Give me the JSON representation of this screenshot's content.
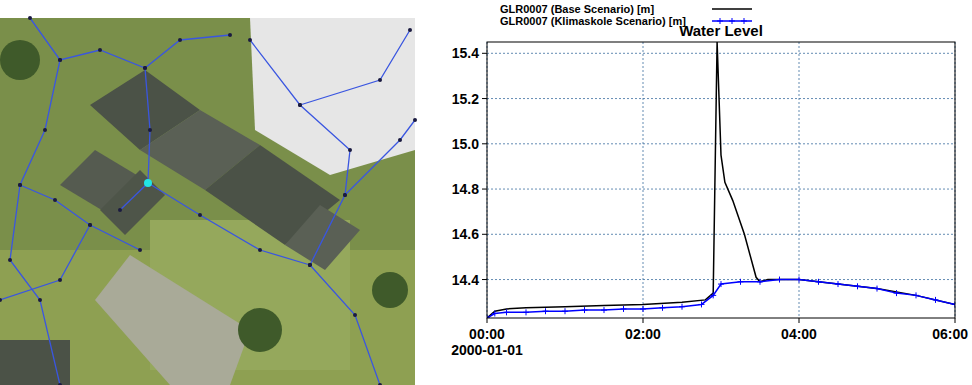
{
  "chart_data": {
    "type": "line",
    "title": "Water Level",
    "xlabel": "2000-01-01",
    "xlim": [
      0,
      6
    ],
    "xticks": [
      {
        "value": 0,
        "label": "00:00"
      },
      {
        "value": 2,
        "label": "02:00"
      },
      {
        "value": 4,
        "label": "04:00"
      },
      {
        "value": 6,
        "label": "06:00"
      }
    ],
    "ylim": [
      14.23,
      15.45
    ],
    "yticks": [
      14.4,
      14.6,
      14.8,
      {
        "value": 15,
        "label": "15.0"
      },
      15.2,
      15.4
    ],
    "grid": true,
    "legend": "top",
    "series": [
      {
        "name": "GLR0007 (Base Scenario) [m]",
        "color": "#000000",
        "line_style": "solid",
        "x": [
          0,
          0.1,
          0.25,
          0.5,
          1,
          1.5,
          2,
          2.5,
          2.8,
          2.9,
          2.95,
          3.0,
          3.05,
          3.15,
          3.3,
          3.45,
          3.5,
          3.6,
          3.75,
          4,
          4.5,
          5,
          5.5,
          6
        ],
        "values": [
          14.23,
          14.26,
          14.27,
          14.275,
          14.28,
          14.285,
          14.29,
          14.3,
          14.31,
          14.34,
          15.45,
          14.95,
          14.83,
          14.75,
          14.6,
          14.41,
          14.39,
          14.4,
          14.4,
          14.4,
          14.38,
          14.36,
          14.33,
          14.29
        ]
      },
      {
        "name": "GLR0007 (Klimaskole Scenario) [m]",
        "color": "#0000ff",
        "line_style": "solid",
        "marker": "plus",
        "x": [
          0,
          0.1,
          0.25,
          0.5,
          0.75,
          1,
          1.25,
          1.5,
          1.75,
          2,
          2.25,
          2.5,
          2.75,
          2.9,
          3.0,
          3.25,
          3.5,
          3.75,
          4,
          4.25,
          4.5,
          4.75,
          5,
          5.25,
          5.5,
          5.75,
          6
        ],
        "values": [
          14.23,
          14.25,
          14.255,
          14.255,
          14.26,
          14.26,
          14.265,
          14.265,
          14.27,
          14.27,
          14.275,
          14.28,
          14.29,
          14.33,
          14.38,
          14.39,
          14.39,
          14.4,
          14.4,
          14.39,
          14.38,
          14.37,
          14.36,
          14.34,
          14.33,
          14.31,
          14.29
        ]
      }
    ]
  }
}
